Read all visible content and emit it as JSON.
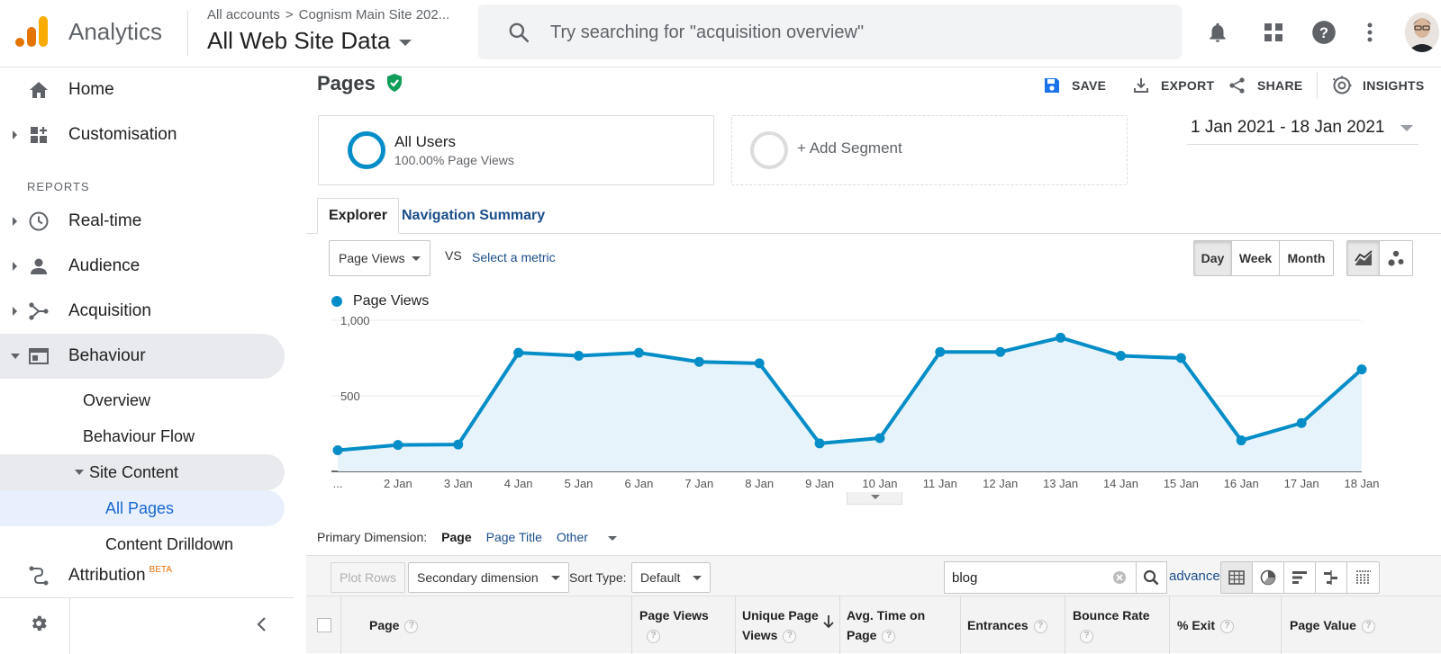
{
  "app": {
    "name": "Analytics",
    "breadcrumb": [
      "All accounts",
      "Cognism Main Site 202..."
    ],
    "view": "All Web Site Data",
    "search_placeholder": "Try searching for \"acquisition overview\""
  },
  "sidebar": {
    "home": "Home",
    "customisation": "Customisation",
    "reports_heading": "REPORTS",
    "realtime": "Real-time",
    "audience": "Audience",
    "acquisition": "Acquisition",
    "behaviour": "Behaviour",
    "overview": "Overview",
    "behaviour_flow": "Behaviour Flow",
    "site_content": "Site Content",
    "all_pages": "All Pages",
    "content_drilldown": "Content Drilldown",
    "attribution": "Attribution",
    "attribution_badge": "BETA"
  },
  "report": {
    "title": "Pages",
    "actions": {
      "save": "SAVE",
      "export": "EXPORT",
      "share": "SHARE",
      "insights": "INSIGHTS"
    },
    "segment": {
      "name": "All Users",
      "detail": "100.00% Page Views"
    },
    "add_segment": "+ Add Segment",
    "date_range": "1 Jan 2021 - 18 Jan 2021",
    "tabs": {
      "explorer": "Explorer",
      "nav_summary": "Navigation Summary"
    },
    "metric_select": "Page Views",
    "vs": "VS",
    "select_metric": "Select a metric",
    "granularity": {
      "day": "Day",
      "week": "Week",
      "month": "Month",
      "selected": "Day"
    },
    "legend": "Page Views",
    "primary_dimension_label": "Primary Dimension:",
    "dimensions": {
      "page": "Page",
      "page_title": "Page Title",
      "other": "Other"
    },
    "toolbar": {
      "plot_rows": "Plot Rows",
      "secondary_dimension": "Secondary dimension",
      "sort_type_label": "Sort Type:",
      "sort_type": "Default",
      "filter_value": "blog",
      "advanced": "advanced"
    },
    "table_headers": {
      "page": "Page",
      "page_views": "Page Views",
      "unique_page_views_1": "Unique Page",
      "unique_page_views_2": "Views",
      "avg_time_1": "Avg. Time on",
      "avg_time_2": "Page",
      "entrances": "Entrances",
      "bounce_rate": "Bounce Rate",
      "exit": "% Exit",
      "page_value": "Page Value"
    }
  },
  "colors": {
    "accent": "#058dc7",
    "link": "#1a4e8a",
    "logo_orange": "#f9ab00",
    "logo_dark": "#e37400"
  },
  "chart_data": {
    "type": "area",
    "series": [
      {
        "name": "Page Views",
        "values": [
          140,
          175,
          178,
          785,
          765,
          785,
          725,
          715,
          185,
          220,
          790,
          790,
          885,
          765,
          750,
          205,
          320,
          675
        ]
      }
    ],
    "categories": [
      "...",
      "2 Jan",
      "3 Jan",
      "4 Jan",
      "5 Jan",
      "6 Jan",
      "7 Jan",
      "8 Jan",
      "9 Jan",
      "10 Jan",
      "11 Jan",
      "12 Jan",
      "13 Jan",
      "14 Jan",
      "15 Jan",
      "16 Jan",
      "17 Jan",
      "18 Jan"
    ],
    "y_ticks": [
      "1,000",
      "500"
    ],
    "ylim": [
      0,
      1000
    ],
    "grid": true
  }
}
